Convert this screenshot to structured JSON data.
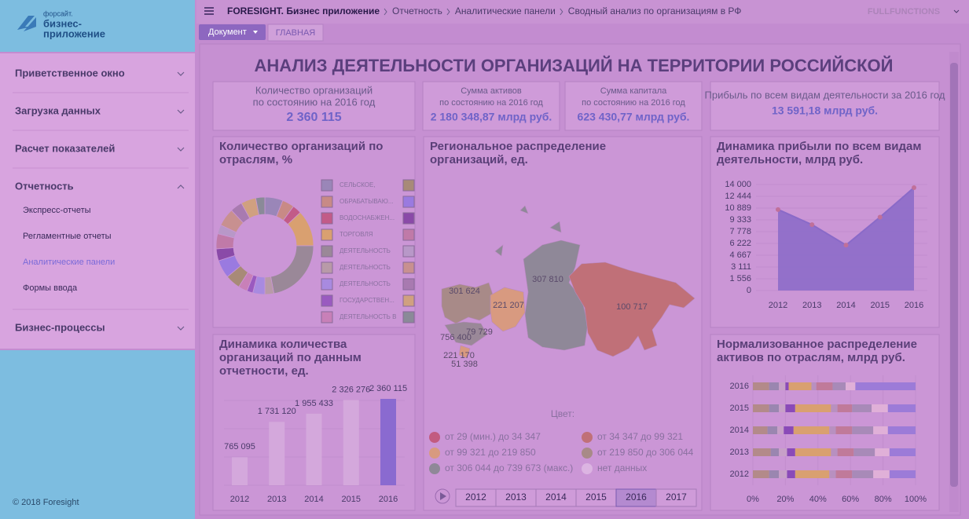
{
  "sidebar": {
    "logo": [
      "форсайт.",
      "бизнес-",
      "приложение"
    ],
    "menu": [
      {
        "label": "Приветственное окно"
      },
      {
        "label": "Загрузка данных"
      },
      {
        "label": "Расчет показателей"
      },
      {
        "label": "Отчетность",
        "items": [
          "Экспресс-отчеты",
          "Регламентные отчеты",
          "Аналитические панели",
          "Формы ввода"
        ]
      },
      {
        "label": "Бизнес-процессы"
      }
    ],
    "active_item": 2,
    "footer": "© 2018 Foresight"
  },
  "header": {
    "breadcrumb": [
      "FORESIGHT. Бизнес приложение",
      "Отчетность",
      "Аналитические панели",
      "Сводный анализ по организациям в РФ"
    ],
    "user": "FULLFUNCTIONS",
    "tabs": [
      "Документ",
      "ГЛАВНАЯ"
    ]
  },
  "dashboard": {
    "title": "АНАЛИЗ ДЕЯТЕЛЬНОСТИ ОРГАНИЗАЦИЙ НА ТЕРРИТОРИИ РОССИЙСКОЙ",
    "kpis": [
      {
        "label": [
          "Количество организаций",
          "по состоянию на 2016 год"
        ],
        "value": "2 360 115"
      },
      {
        "label": [
          "Сумма активов",
          "по состоянию на 2016 год"
        ],
        "value": "2 180 348,87 млрд руб."
      },
      {
        "label": [
          "Сумма капитала",
          "по состоянию на 2016 год"
        ],
        "value": "623 430,77 млрд руб."
      },
      {
        "label": [
          "Прибыль по всем видам деятельности за 2016 год"
        ],
        "value": "13 591,18 млрд руб."
      }
    ],
    "charts": [
      {
        "type": "donut",
        "title": [
          "Количество организаций по",
          "отраслям, %"
        ],
        "categories": [
          "СЕЛЬСКОЕ,",
          "ОБРАБАТЫВАЮ...",
          "ВОДОСНАБЖЕН...",
          "ТОРГОВЛЯ",
          "ДЕЯТЕЛЬНОСТЬ",
          "ДЕЯТЕЛЬНОСТЬ",
          "ДЕЯТЕЛЬНОСТЬ",
          "ГОСУДАРСТВЕН...",
          "ДЕЯТЕЛЬНОСТЬ В",
          null,
          null,
          null,
          null,
          null,
          null,
          null,
          null,
          null
        ],
        "values": [
          6,
          4,
          3,
          12,
          22,
          3,
          4,
          2,
          3,
          5,
          6,
          4,
          5,
          3,
          6,
          4,
          5,
          3
        ],
        "colors": [
          "#9a86b8",
          "#c88a86",
          "#c25b88",
          "#d9a070",
          "#9a8898",
          "#b89aa8",
          "#a88ae0",
          "#9a5ac0",
          "#c880b8",
          "#a88a78",
          "#9a7ae0",
          "#8a4aa8",
          "#c07aa8",
          "#b898c8",
          "#c89090",
          "#a87ab0",
          "#d0a080",
          "#8a8a98"
        ]
      },
      {
        "type": "map",
        "title": [
          "Региональное распределение",
          "организаций, ед."
        ],
        "labels": [
          "301 624",
          "221 207",
          "307 810",
          "100 717",
          "756 400",
          "79 729",
          "221 170",
          "51 398"
        ],
        "legend_title": "Цвет:",
        "legend": [
          {
            "label": "от 29 (мин.) до 34 347",
            "color": "#c25b80"
          },
          {
            "label": "от 34 347 до 99 321",
            "color": "#c07078"
          },
          {
            "label": "от 99 321 до 219 850",
            "color": "#d89a80"
          },
          {
            "label": "от 219 850 до 306 044",
            "color": "#a88a88"
          },
          {
            "label": "от 306 044 до 739 673 (макс.)",
            "color": "#8f8898"
          },
          {
            "label": "нет данных",
            "color": "#dcb4e2"
          }
        ],
        "years": [
          "2012",
          "2013",
          "2014",
          "2015",
          "2016",
          "2017"
        ],
        "selected": 4
      },
      {
        "type": "area",
        "title": [
          "Динамика прибыли по всем видам",
          "деятельности, млрд руб."
        ],
        "categories": [
          "2012",
          "2013",
          "2014",
          "2015",
          "2016"
        ],
        "values": [
          10700,
          8700,
          6000,
          9700,
          13591.18
        ],
        "color": "#8a6ac8",
        "marker_color": "#c0709a",
        "ylim": [
          0,
          14000
        ],
        "yticks": [
          0,
          {
            "value": 1556,
            "label": "1 556"
          },
          {
            "value": 3111,
            "label": "3 111"
          },
          {
            "value": 4667,
            "label": "4 667"
          },
          {
            "value": 6222,
            "label": "6 222"
          },
          {
            "value": 7778,
            "label": "7 778"
          },
          {
            "value": 9333,
            "label": "9 333"
          },
          {
            "value": 10889,
            "label": "10 889"
          },
          {
            "value": 12444,
            "label": "12 444"
          },
          {
            "value": 14000,
            "label": "14 000"
          }
        ],
        "grid": true
      },
      {
        "type": "bar",
        "title": [
          "Динамика количества",
          "организаций по данным",
          "отчетности, ед."
        ],
        "categories": [
          "2012",
          "2013",
          "2014",
          "2015",
          "2016"
        ],
        "values": [
          765095,
          1731120,
          1955433,
          2326276,
          2360115
        ],
        "value_labels": [
          "765 095",
          "1 731 120",
          "1 955 433",
          "2 326 276",
          "2 360 115"
        ],
        "colors": [
          "#d4a8dc",
          "#d4a8dc",
          "#d4a8dc",
          "#d4a8dc",
          "#8a6ad0"
        ]
      },
      {
        "type": "stacked-bar",
        "title": [
          "Нормализованное распределение",
          "активов по отраслям, млрд руб."
        ],
        "categories": [
          "2016",
          "2015",
          "2014",
          "2013",
          "2012"
        ],
        "xlim": [
          0,
          100
        ],
        "xticks": [
          {
            "value": 0,
            "label": "0%"
          },
          {
            "value": 20,
            "label": "20%"
          },
          {
            "value": 40,
            "label": "40%"
          },
          {
            "value": 60,
            "label": "60%"
          },
          {
            "value": 80,
            "label": "80%"
          },
          {
            "value": 100,
            "label": "100%"
          }
        ],
        "series": [
          {
            "color": "#b38a8a",
            "values": [
              10,
              10,
              9,
              11,
              10
            ]
          },
          {
            "color": "#9a86b0",
            "values": [
              6,
              6,
              6,
              5,
              6
            ]
          },
          {
            "color": "#c7a0c8",
            "values": [
              4,
              4,
              4,
              5,
              5
            ]
          },
          {
            "color": "#8a4ab8",
            "values": [
              2,
              6,
              6,
              5,
              5
            ]
          },
          {
            "color": "#d9a070",
            "values": [
              14,
              22,
              22,
              22,
              21
            ]
          },
          {
            "color": "#b890c0",
            "values": [
              3,
              4,
              4,
              4,
              4
            ]
          },
          {
            "color": "#c07a9a",
            "values": [
              10,
              9,
              10,
              10,
              10
            ]
          },
          {
            "color": "#a88ab8",
            "values": [
              8,
              12,
              13,
              13,
              13
            ]
          },
          {
            "color": "#e0b0d8",
            "values": [
              6,
              10,
              9,
              9,
              10
            ]
          },
          {
            "color": "#9c7bd8",
            "values": [
              37,
              17,
              17,
              16,
              16
            ]
          }
        ]
      }
    ]
  }
}
